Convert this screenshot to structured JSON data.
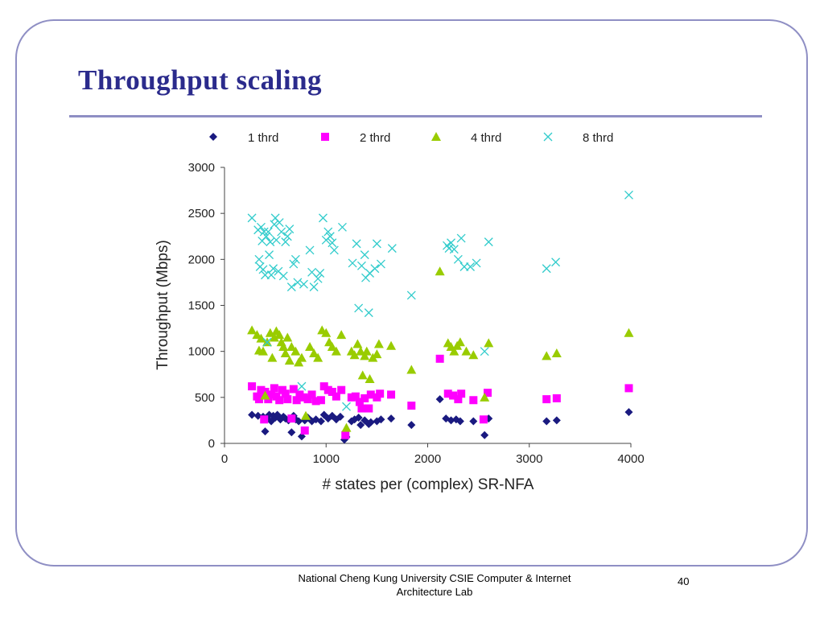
{
  "slide": {
    "title": "Throughput scaling",
    "footer_line1": "National Cheng Kung University CSIE Computer & Internet",
    "footer_line2": "Architecture Lab",
    "page_number": "40"
  },
  "colors": {
    "frame": "#8f8fc4",
    "title": "#2b2b8c",
    "series_1": "#1a1a80",
    "series_2": "#ff00ff",
    "series_3": "#99cc00",
    "series_4": "#33cccc"
  },
  "chart_data": {
    "type": "scatter",
    "title": "",
    "xlabel": "# states per (complex) SR-NFA",
    "ylabel": "Throughput (Mbps)",
    "xlim": [
      0,
      4000
    ],
    "ylim": [
      0,
      3000
    ],
    "xticks": [
      "0",
      "1000",
      "2000",
      "3000",
      "4000"
    ],
    "yticks": [
      "0",
      "500",
      "1000",
      "1500",
      "2000",
      "2500",
      "3000"
    ],
    "grid": false,
    "legend_position": "top",
    "series": [
      {
        "name": "1 thrd",
        "marker": "diamond",
        "color": "#1a1a80",
        "points": [
          [
            270,
            310
          ],
          [
            330,
            300
          ],
          [
            380,
            290
          ],
          [
            400,
            130
          ],
          [
            420,
            270
          ],
          [
            440,
            310
          ],
          [
            460,
            240
          ],
          [
            480,
            300
          ],
          [
            500,
            280
          ],
          [
            520,
            310
          ],
          [
            550,
            260
          ],
          [
            580,
            290
          ],
          [
            600,
            270
          ],
          [
            630,
            250
          ],
          [
            660,
            120
          ],
          [
            680,
            300
          ],
          [
            700,
            260
          ],
          [
            730,
            240
          ],
          [
            760,
            75
          ],
          [
            790,
            250
          ],
          [
            820,
            280
          ],
          [
            860,
            240
          ],
          [
            900,
            260
          ],
          [
            950,
            240
          ],
          [
            980,
            310
          ],
          [
            1020,
            270
          ],
          [
            1060,
            300
          ],
          [
            1100,
            260
          ],
          [
            1140,
            290
          ],
          [
            1180,
            40
          ],
          [
            1200,
            70
          ],
          [
            1250,
            240
          ],
          [
            1280,
            260
          ],
          [
            1320,
            280
          ],
          [
            1340,
            200
          ],
          [
            1380,
            250
          ],
          [
            1420,
            210
          ],
          [
            1440,
            230
          ],
          [
            1500,
            240
          ],
          [
            1540,
            260
          ],
          [
            1640,
            270
          ],
          [
            1840,
            200
          ],
          [
            2120,
            480
          ],
          [
            2180,
            270
          ],
          [
            2230,
            250
          ],
          [
            2280,
            260
          ],
          [
            2320,
            240
          ],
          [
            2450,
            240
          ],
          [
            2560,
            90
          ],
          [
            2600,
            270
          ],
          [
            3170,
            240
          ],
          [
            3270,
            250
          ],
          [
            3980,
            340
          ]
        ]
      },
      {
        "name": "2 thrd",
        "marker": "square",
        "color": "#ff00ff",
        "points": [
          [
            270,
            620
          ],
          [
            320,
            510
          ],
          [
            340,
            480
          ],
          [
            360,
            580
          ],
          [
            390,
            260
          ],
          [
            400,
            560
          ],
          [
            430,
            480
          ],
          [
            460,
            530
          ],
          [
            490,
            600
          ],
          [
            510,
            510
          ],
          [
            540,
            470
          ],
          [
            570,
            580
          ],
          [
            600,
            540
          ],
          [
            620,
            480
          ],
          [
            660,
            270
          ],
          [
            680,
            590
          ],
          [
            710,
            470
          ],
          [
            740,
            530
          ],
          [
            780,
            500
          ],
          [
            790,
            140
          ],
          [
            820,
            480
          ],
          [
            860,
            530
          ],
          [
            900,
            460
          ],
          [
            950,
            470
          ],
          [
            980,
            620
          ],
          [
            1020,
            580
          ],
          [
            1060,
            560
          ],
          [
            1100,
            510
          ],
          [
            1150,
            580
          ],
          [
            1190,
            90
          ],
          [
            1250,
            500
          ],
          [
            1290,
            510
          ],
          [
            1330,
            450
          ],
          [
            1350,
            380
          ],
          [
            1380,
            490
          ],
          [
            1420,
            380
          ],
          [
            1440,
            530
          ],
          [
            1500,
            500
          ],
          [
            1530,
            540
          ],
          [
            1640,
            530
          ],
          [
            1840,
            410
          ],
          [
            2120,
            920
          ],
          [
            2200,
            540
          ],
          [
            2250,
            520
          ],
          [
            2300,
            480
          ],
          [
            2330,
            540
          ],
          [
            2450,
            470
          ],
          [
            2550,
            260
          ],
          [
            2590,
            550
          ],
          [
            3170,
            480
          ],
          [
            3270,
            490
          ],
          [
            3980,
            600
          ]
        ]
      },
      {
        "name": "4 thrd",
        "marker": "triangle",
        "color": "#99cc00",
        "points": [
          [
            270,
            1230
          ],
          [
            320,
            1180
          ],
          [
            340,
            1010
          ],
          [
            360,
            1140
          ],
          [
            380,
            1000
          ],
          [
            400,
            520
          ],
          [
            420,
            1100
          ],
          [
            450,
            1200
          ],
          [
            470,
            930
          ],
          [
            490,
            1150
          ],
          [
            510,
            1220
          ],
          [
            540,
            1180
          ],
          [
            560,
            1100
          ],
          [
            580,
            1050
          ],
          [
            600,
            980
          ],
          [
            620,
            1150
          ],
          [
            640,
            900
          ],
          [
            660,
            1050
          ],
          [
            700,
            1000
          ],
          [
            730,
            880
          ],
          [
            760,
            930
          ],
          [
            800,
            300
          ],
          [
            840,
            1050
          ],
          [
            880,
            980
          ],
          [
            920,
            930
          ],
          [
            960,
            1230
          ],
          [
            1000,
            1200
          ],
          [
            1030,
            1100
          ],
          [
            1060,
            1050
          ],
          [
            1100,
            1000
          ],
          [
            1150,
            1180
          ],
          [
            1200,
            170
          ],
          [
            1250,
            1000
          ],
          [
            1280,
            960
          ],
          [
            1310,
            1080
          ],
          [
            1340,
            1000
          ],
          [
            1360,
            740
          ],
          [
            1380,
            950
          ],
          [
            1400,
            1000
          ],
          [
            1430,
            700
          ],
          [
            1460,
            930
          ],
          [
            1500,
            970
          ],
          [
            1520,
            1080
          ],
          [
            1640,
            1060
          ],
          [
            1840,
            800
          ],
          [
            2120,
            1870
          ],
          [
            2200,
            1090
          ],
          [
            2230,
            1050
          ],
          [
            2260,
            1000
          ],
          [
            2290,
            1060
          ],
          [
            2320,
            1100
          ],
          [
            2380,
            1000
          ],
          [
            2450,
            960
          ],
          [
            2560,
            500
          ],
          [
            2600,
            1090
          ],
          [
            3170,
            950
          ],
          [
            3270,
            980
          ],
          [
            3980,
            1200
          ]
        ]
      },
      {
        "name": "8 thrd",
        "marker": "x",
        "color": "#33cccc",
        "points": [
          [
            270,
            2450
          ],
          [
            330,
            2320
          ],
          [
            340,
            2000
          ],
          [
            350,
            1920
          ],
          [
            360,
            2350
          ],
          [
            370,
            2200
          ],
          [
            380,
            1890
          ],
          [
            390,
            2300
          ],
          [
            400,
            1830
          ],
          [
            410,
            2250
          ],
          [
            420,
            1100
          ],
          [
            430,
            2300
          ],
          [
            440,
            2050
          ],
          [
            450,
            2190
          ],
          [
            460,
            1830
          ],
          [
            480,
            1900
          ],
          [
            490,
            2380
          ],
          [
            500,
            2450
          ],
          [
            510,
            2210
          ],
          [
            530,
            1870
          ],
          [
            540,
            2400
          ],
          [
            560,
            2300
          ],
          [
            580,
            1820
          ],
          [
            600,
            2190
          ],
          [
            620,
            2250
          ],
          [
            640,
            2330
          ],
          [
            660,
            1700
          ],
          [
            680,
            1950
          ],
          [
            700,
            2000
          ],
          [
            720,
            1750
          ],
          [
            760,
            620
          ],
          [
            780,
            1730
          ],
          [
            840,
            2100
          ],
          [
            860,
            1860
          ],
          [
            880,
            1700
          ],
          [
            920,
            1790
          ],
          [
            940,
            1850
          ],
          [
            970,
            2450
          ],
          [
            1000,
            2210
          ],
          [
            1020,
            2300
          ],
          [
            1040,
            2250
          ],
          [
            1060,
            2180
          ],
          [
            1080,
            2100
          ],
          [
            1160,
            2350
          ],
          [
            1200,
            400
          ],
          [
            1260,
            1960
          ],
          [
            1300,
            2170
          ],
          [
            1320,
            1470
          ],
          [
            1350,
            1930
          ],
          [
            1380,
            2050
          ],
          [
            1390,
            1800
          ],
          [
            1420,
            1420
          ],
          [
            1430,
            1850
          ],
          [
            1480,
            1900
          ],
          [
            1500,
            2170
          ],
          [
            1540,
            1950
          ],
          [
            1650,
            2120
          ],
          [
            1840,
            1610
          ],
          [
            2190,
            2150
          ],
          [
            2210,
            2120
          ],
          [
            2230,
            2180
          ],
          [
            2260,
            2110
          ],
          [
            2300,
            2000
          ],
          [
            2330,
            2230
          ],
          [
            2360,
            1920
          ],
          [
            2420,
            1920
          ],
          [
            2480,
            1960
          ],
          [
            2560,
            1000
          ],
          [
            2600,
            2190
          ],
          [
            3170,
            1900
          ],
          [
            3260,
            1970
          ],
          [
            3980,
            2700
          ]
        ]
      }
    ]
  }
}
